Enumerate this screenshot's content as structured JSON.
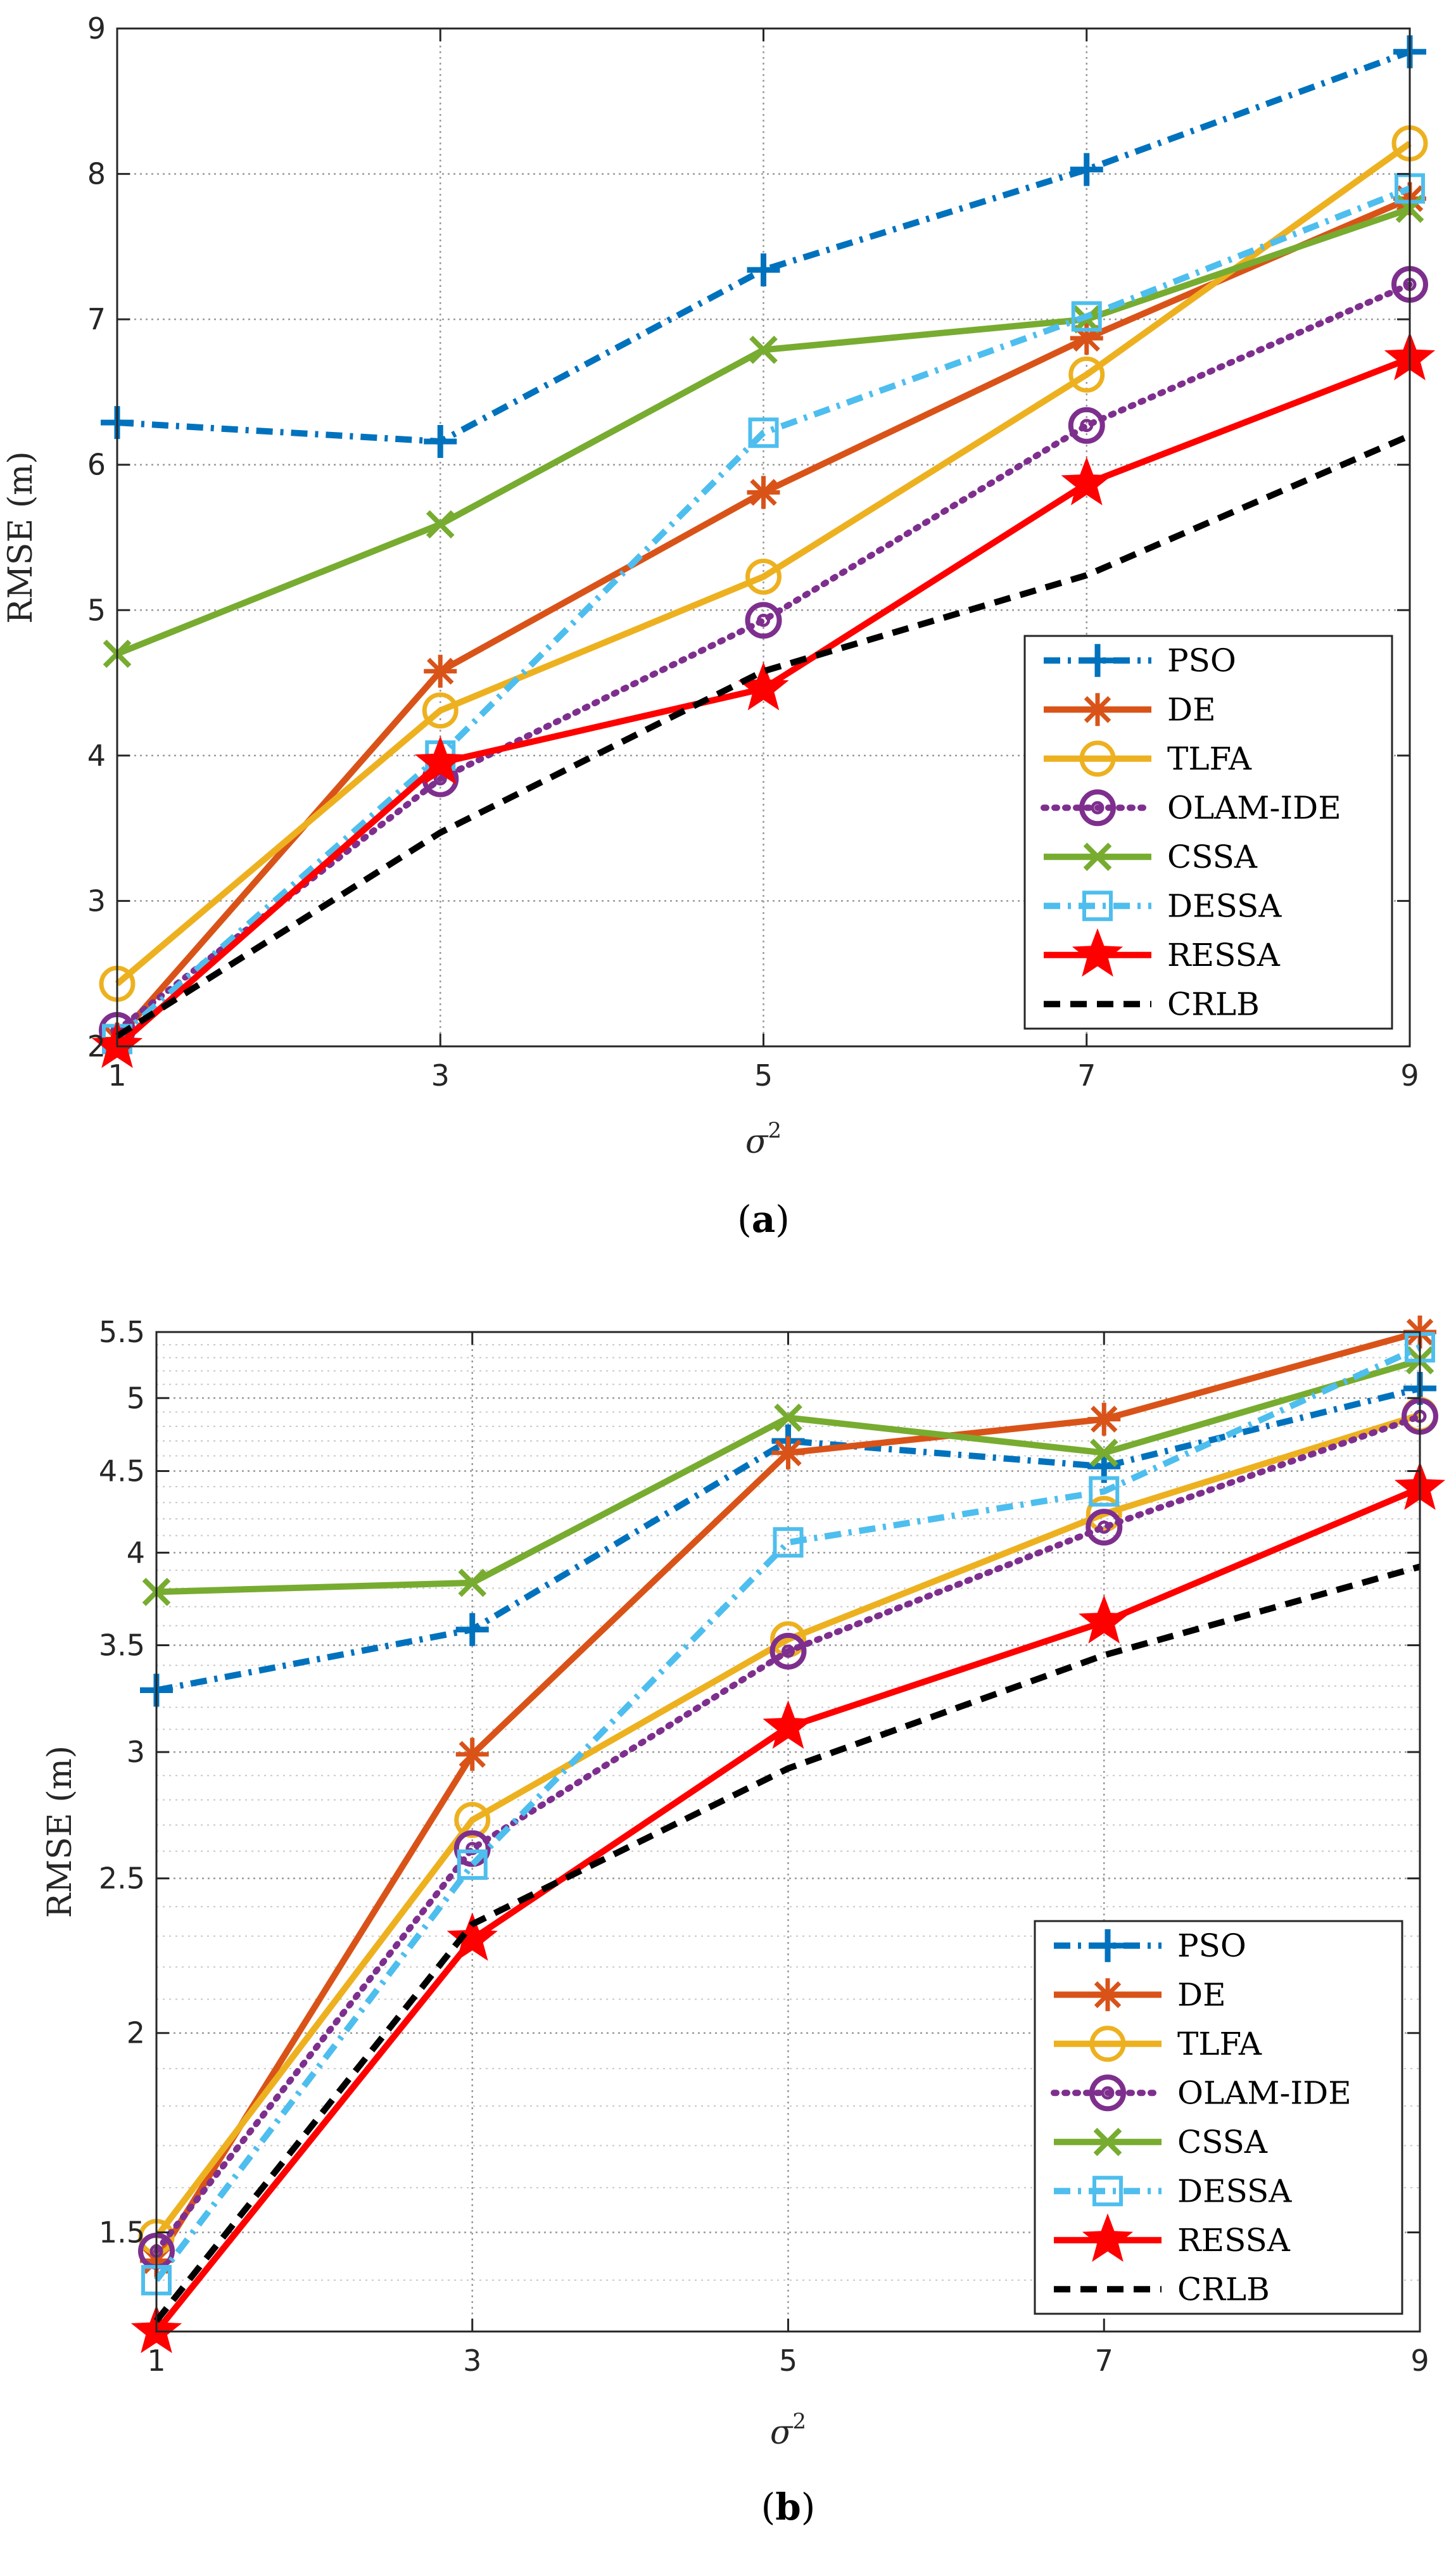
{
  "chart_data": [
    {
      "type": "line",
      "caption_label": "a",
      "xlabel": "σ",
      "xlabel_sup": "2",
      "ylabel": "RMSE (m)",
      "yscale": "linear",
      "xlim": [
        1,
        9
      ],
      "ylim": [
        2,
        9
      ],
      "x": [
        1,
        3,
        5,
        7,
        9
      ],
      "xticks": [
        "1",
        "3",
        "5",
        "7",
        "9"
      ],
      "yticks": [
        2,
        3,
        4,
        5,
        6,
        7,
        8,
        9
      ],
      "ytick_labels": [
        "2",
        "3",
        "4",
        "5",
        "6",
        "7",
        "8",
        "9"
      ],
      "minor_yticks": [],
      "grid": "major",
      "legend_position": "lower-right",
      "series": [
        {
          "name": "PSO",
          "values": [
            6.29,
            6.16,
            7.34,
            8.03,
            8.84
          ],
          "color": "#0072BD",
          "dash": "dashdot",
          "marker": "plus"
        },
        {
          "name": "DE",
          "values": [
            2.05,
            4.58,
            5.81,
            6.87,
            7.83
          ],
          "color": "#D95319",
          "dash": "solid",
          "marker": "asterisk"
        },
        {
          "name": "TLFA",
          "values": [
            2.43,
            4.31,
            5.23,
            6.62,
            8.21
          ],
          "color": "#EDB120",
          "dash": "solid",
          "marker": "circle"
        },
        {
          "name": "OLAM-IDE",
          "values": [
            2.11,
            3.84,
            4.93,
            6.27,
            7.24
          ],
          "color": "#7E2F8E",
          "dash": "dotted",
          "marker": "circle-dot"
        },
        {
          "name": "CSSA",
          "values": [
            4.7,
            5.59,
            6.79,
            7.0,
            7.76
          ],
          "color": "#77AC30",
          "dash": "solid",
          "marker": "x"
        },
        {
          "name": "DESSA",
          "values": [
            2.05,
            4.0,
            6.22,
            7.02,
            7.9
          ],
          "color": "#4DBEEE",
          "dash": "dashdot",
          "marker": "square"
        },
        {
          "name": "RESSA",
          "values": [
            2.0,
            3.95,
            4.46,
            5.87,
            6.73
          ],
          "color": "#FF0000",
          "dash": "solid",
          "marker": "star"
        },
        {
          "name": "CRLB",
          "values": [
            2.07,
            3.47,
            4.58,
            5.24,
            6.2
          ],
          "color": "#000000",
          "dash": "dashed",
          "marker": "none"
        }
      ]
    },
    {
      "type": "line",
      "caption_label": "b",
      "xlabel": "σ",
      "xlabel_sup": "2",
      "ylabel": "RMSE (m)",
      "yscale": "log",
      "xlim": [
        1,
        9
      ],
      "ylim": [
        1.3,
        5.5
      ],
      "x": [
        1,
        3,
        5,
        7,
        9
      ],
      "xticks": [
        "1",
        "3",
        "5",
        "7",
        "9"
      ],
      "yticks": [
        1.5,
        2,
        2.5,
        3,
        3.5,
        4,
        4.5,
        5,
        5.5
      ],
      "ytick_labels": [
        "1.5",
        "2",
        "2.5",
        "3",
        "3.5",
        "4",
        "4.5",
        "5",
        "5.5"
      ],
      "minor_yticks": [
        1.4,
        1.6,
        1.7,
        1.8,
        1.9,
        2.1,
        2.2,
        2.3,
        2.4,
        2.6,
        2.7,
        2.8,
        2.9,
        3.1,
        3.2,
        3.3,
        3.4,
        3.6,
        3.7,
        3.8,
        3.9,
        4.1,
        4.2,
        4.3,
        4.4,
        4.6,
        4.7,
        4.8,
        4.9,
        5.1,
        5.2,
        5.3,
        5.4
      ],
      "grid": "major+minor",
      "legend_position": "lower-right",
      "series": [
        {
          "name": "PSO",
          "values": [
            3.28,
            3.58,
            4.7,
            4.53,
            5.07
          ],
          "color": "#0072BD",
          "dash": "dashdot",
          "marker": "plus"
        },
        {
          "name": "DE",
          "values": [
            1.44,
            2.99,
            4.62,
            4.85,
            5.5
          ],
          "color": "#D95319",
          "dash": "solid",
          "marker": "asterisk"
        },
        {
          "name": "TLFA",
          "values": [
            1.49,
            2.72,
            3.53,
            4.23,
            4.88
          ],
          "color": "#EDB120",
          "dash": "solid",
          "marker": "circle"
        },
        {
          "name": "OLAM-IDE",
          "values": [
            1.46,
            2.61,
            3.47,
            4.15,
            4.87
          ],
          "color": "#7E2F8E",
          "dash": "dotted",
          "marker": "circle-dot"
        },
        {
          "name": "CSSA",
          "values": [
            3.78,
            3.83,
            4.86,
            4.62,
            5.28
          ],
          "color": "#77AC30",
          "dash": "solid",
          "marker": "x"
        },
        {
          "name": "DESSA",
          "values": [
            1.4,
            2.55,
            4.06,
            4.37,
            5.38
          ],
          "color": "#4DBEEE",
          "dash": "dashdot",
          "marker": "square"
        },
        {
          "name": "RESSA",
          "values": [
            1.3,
            2.29,
            3.11,
            3.62,
            4.39
          ],
          "color": "#FF0000",
          "dash": "solid",
          "marker": "star"
        },
        {
          "name": "CRLB",
          "values": [
            1.32,
            2.34,
            2.93,
            3.45,
            3.92
          ],
          "color": "#000000",
          "dash": "dashed",
          "marker": "none"
        }
      ]
    }
  ]
}
